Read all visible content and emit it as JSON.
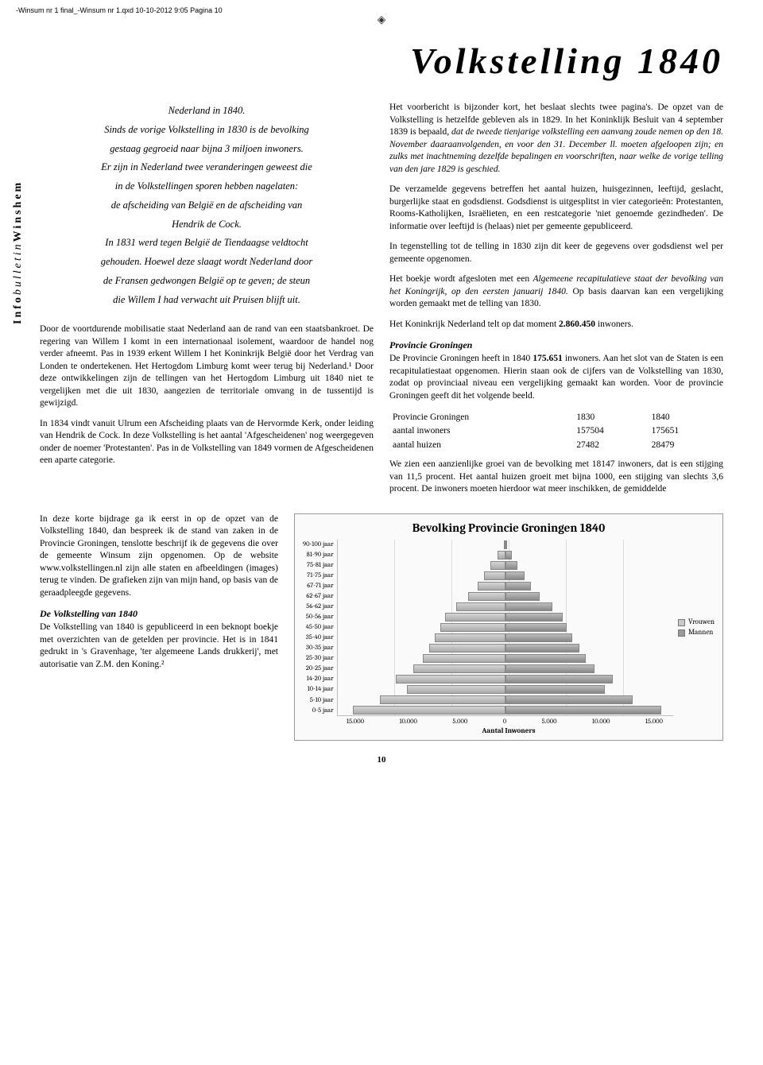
{
  "header_line": "-Winsum nr 1 final_-Winsum nr 1.qxd  10-10-2012  9:05  Pagina 10",
  "main_title": "Volkstelling 1840",
  "sidebar_label_1": "Info",
  "sidebar_label_2": "bulletin",
  "sidebar_label_3": "Winshem",
  "intro": "Nederland in 1840.\nSinds de vorige Volkstelling in 1830 is de bevolking\ngestaag gegroeid naar bijna 3 miljoen inwoners.\nEr zijn in Nederland twee veranderingen geweest die\nin de Volkstellingen sporen hebben nagelaten:\nde afscheiding van België en de afscheiding van\nHendrik de Cock.\nIn 1831 werd tegen België de Tiendaagse veldtocht\ngehouden. Hoewel deze slaagt wordt Nederland door\nde Fransen gedwongen België op te geven; de steun\ndie Willem I had verwacht uit Pruisen blijft uit.",
  "left_p1": "Door de voortdurende mobilisatie staat Nederland aan de rand van een staatsbankroet. De regering van Willem I komt in een internationaal isolement, waardoor de handel nog verder afneemt. Pas in 1939 erkent Willem I het Koninkrijk België door het Verdrag van Londen te ondertekenen. Het Hertogdom Limburg komt weer terug bij Nederland.¹ Door deze ontwikkelingen zijn de tellingen van het Hertogdom Limburg uit 1840 niet te vergelijken met die uit 1830, aangezien de territoriale omvang in de tussentijd is gewijzigd.",
  "left_p2": "In 1834 vindt vanuit Ulrum een Afscheiding plaats van de Hervormde Kerk, onder leiding van Hendrik de Cock. In deze Volkstelling is het aantal 'Afgescheidenen' nog weergegeven onder de noemer 'Protestanten'. Pas in de Volkstelling van 1849 vormen de Afgescheidenen een aparte categorie.",
  "right_p1": "Het voorbericht is bijzonder kort, het beslaat slechts twee pagina's. De opzet van de Volkstelling is hetzelfde gebleven als in 1829. In het Koninklijk Besluit van 4 september 1839 is bepaald, dat de tweede tienjarige volkstelling een aanvang zoude nemen op den 18. November daaraanvolgenden, en voor den 31. December ll. moeten afgeloopen zijn; en zulks met inachtneming dezelfde bepalingen en voorschriften, naar welke de vorige telling van den jare 1829 is geschied.",
  "right_p1_italic_start": "dat de tweede tienjarige volkstelling een aanvang zoude nemen op den 18. November daaraanvolgenden, en voor den 31. December ll. moeten afgeloopen zijn; en zulks met inachtneming dezelfde bepalingen en voorschriften, naar welke de vorige telling van den jare 1829 is geschied.",
  "right_p2": "De verzamelde gegevens betreffen het aantal huizen, huisgezinnen, leeftijd, geslacht, burgerlijke staat en godsdienst. Godsdienst is uitgesplitst in vier categorieën: Protestanten, Rooms-Katholijken, Israëlieten, en een restcategorie 'niet genoemde gezindheden'. De informatie over leeftijd is (helaas) niet per gemeente gepubliceerd.",
  "right_p3": "In tegenstelling tot de telling in 1830 zijn dit keer de gegevens over godsdienst wel per gemeente opgenomen.",
  "right_p4a": "Het boekje wordt afgesloten met een ",
  "right_p4_italic": "Algemeene recapitulatieve staat der bevolking van het Koningrijk, op den eersten januarij 1840.",
  "right_p4b": " Op basis daarvan kan een vergelijking worden gemaakt met de telling van 1830.",
  "right_p5": "Het Koninkrijk Nederland telt op dat moment 2.860.450 inwoners.",
  "sec_prov_title": "Provincie Groningen",
  "right_p6": "De Provincie Groningen heeft in 1840 175.651 inwoners. Aan het slot van de Staten is een recapitulatiestaat opgenomen. Hierin staan ook de cijfers van de Volkstelling van 1830, zodat op provinciaal niveau een vergelijking gemaakt kan worden. Voor de provincie Groningen geeft dit het volgende beeld.",
  "table": {
    "rows": [
      [
        "Provincie Groningen",
        "1830",
        "1840"
      ],
      [
        "aantal inwoners",
        "157504",
        "175651"
      ],
      [
        "aantal huizen",
        "27482",
        "28479"
      ]
    ]
  },
  "right_p7": "We zien een aanzienlijke groei van de bevolking met 18147 inwoners, dat is een stijging van 11,5 procent. Het aantal huizen groeit met bijna 1000, een stijging van slechts 3,6 procent. De inwoners moeten hierdoor wat meer inschikken, de gemiddelde",
  "lower_p1": "In deze korte bijdrage ga ik eerst in op de opzet van de Volkstelling 1840, dan bespreek ik de stand van zaken in de Provincie Groningen, tenslotte beschrijf ik de gegevens die over de gemeente Winsum zijn opgenomen. Op de website www.volkstellingen.nl zijn alle staten en afbeeldingen (images) terug te vinden. De grafieken zijn van mijn hand, op basis van de geraadpleegde gegevens.",
  "sec_volk_title": "De Volkstelling van 1840",
  "lower_p2": "De Volkstelling van 1840 is gepubliceerd in een beknopt boekje met overzichten van de getelden per provincie. Het is in 1841 gedrukt in 's Gravenhage, 'ter algemeene Lands drukkerij', met autorisatie van Z.M. den Koning.²",
  "chart": {
    "title": "Bevolking Provincie Groningen 1840",
    "y_labels": [
      "90-100 jaar",
      "81-90 jaar",
      "75-81 jaar",
      "71-75 jaar",
      "67-71 jaar",
      "62-67 jaar",
      "56-62 jaar",
      "50-56 jaar",
      "45-50 jaar",
      "35-40 jaar",
      "30-35 jaar",
      "25-30 jaar",
      "20-25 jaar",
      "14-20 jaar",
      "10-14 jaar",
      "5-10 jaar",
      "0-5 jaar"
    ],
    "x_ticks": [
      "15.000",
      "10.000",
      "5.000",
      "0",
      "5.000",
      "10.000",
      "15.000"
    ],
    "x_title": "Aantal Inwoners",
    "x_max": 15000,
    "legend": [
      {
        "label": "Vrouwen",
        "color": "#c8c8c8"
      },
      {
        "label": "Mannen",
        "color": "#9a9a9a"
      }
    ],
    "vrouwen": [
      60,
      700,
      1300,
      1900,
      2500,
      3300,
      4400,
      5400,
      5800,
      6300,
      6800,
      7400,
      8200,
      9800,
      8800,
      11200,
      13600
    ],
    "mannen": [
      40,
      600,
      1100,
      1700,
      2300,
      3100,
      4200,
      5100,
      5500,
      6000,
      6600,
      7200,
      8000,
      9600,
      8900,
      11400,
      13900
    ],
    "bar_bg_left": "linear-gradient(#d5d5d5,#aaaaaa)",
    "bar_bg_right": "linear-gradient(#bcbcbc,#888888)"
  },
  "page_number": "10"
}
